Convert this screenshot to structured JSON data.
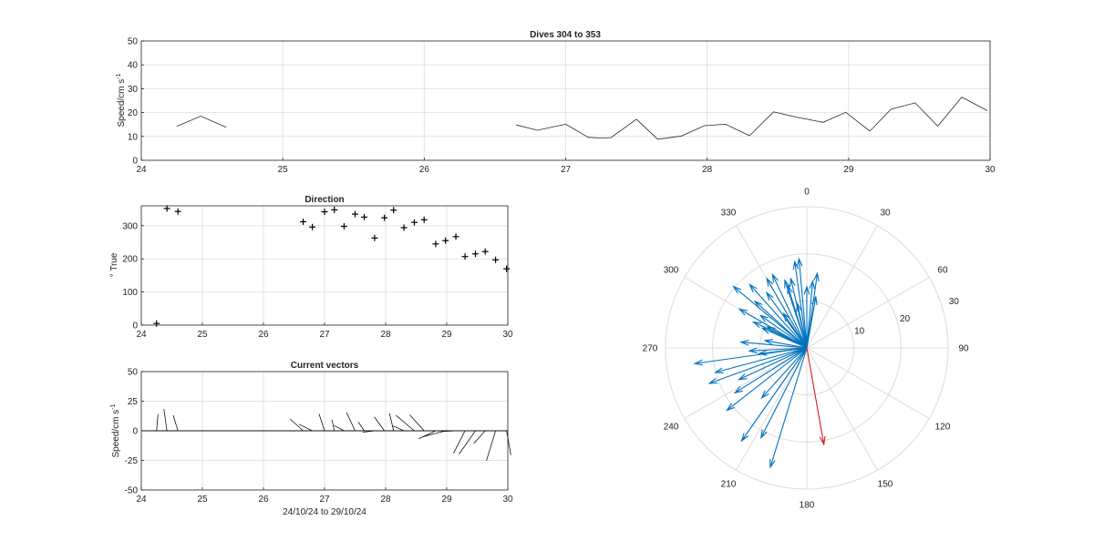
{
  "chart_data": [
    {
      "type": "line",
      "title": "Dives 304 to 353",
      "ylabel": "Speed/cm s",
      "ylabel_superscript": "-1",
      "xlim": [
        24,
        30
      ],
      "ylim": [
        0,
        50
      ],
      "xticks": [
        24,
        25,
        26,
        27,
        28,
        29,
        30
      ],
      "yticks": [
        0,
        10,
        20,
        30,
        40,
        50
      ],
      "grid": true,
      "segments": [
        [
          [
            24.25,
            14.2
          ],
          [
            24.42,
            18.5
          ],
          [
            24.6,
            13.8
          ]
        ],
        [
          [
            26.65,
            14.8
          ],
          [
            26.8,
            12.6
          ],
          [
            27.0,
            15.1
          ],
          [
            27.16,
            9.6
          ],
          [
            27.25,
            9.3
          ],
          [
            27.32,
            9.5
          ],
          [
            27.5,
            17.2
          ],
          [
            27.65,
            8.8
          ],
          [
            27.82,
            10.2
          ],
          [
            27.98,
            14.5
          ],
          [
            28.13,
            15.1
          ],
          [
            28.3,
            10.3
          ],
          [
            28.47,
            20.3
          ],
          [
            28.63,
            18.1
          ],
          [
            28.82,
            15.9
          ],
          [
            28.98,
            20.1
          ],
          [
            29.15,
            12.2
          ],
          [
            29.3,
            21.4
          ],
          [
            29.47,
            24.1
          ],
          [
            29.63,
            14.3
          ],
          [
            29.8,
            26.5
          ],
          [
            29.98,
            20.8
          ]
        ]
      ]
    },
    {
      "type": "scatter",
      "title": "Direction",
      "ylabel": "° True",
      "xlim": [
        24,
        30
      ],
      "ylim": [
        0,
        360
      ],
      "xticks": [
        24,
        25,
        26,
        27,
        28,
        29,
        30
      ],
      "yticks": [
        0,
        100,
        200,
        300
      ],
      "grid": true,
      "marker": "+",
      "points": [
        [
          24.25,
          5
        ],
        [
          24.42,
          352
        ],
        [
          24.6,
          343
        ],
        [
          26.65,
          312
        ],
        [
          26.8,
          296
        ],
        [
          27.0,
          342
        ],
        [
          27.16,
          348
        ],
        [
          27.32,
          298
        ],
        [
          27.5,
          335
        ],
        [
          27.65,
          326
        ],
        [
          27.82,
          263
        ],
        [
          27.98,
          324
        ],
        [
          28.13,
          347
        ],
        [
          28.3,
          294
        ],
        [
          28.47,
          310
        ],
        [
          28.63,
          318
        ],
        [
          28.82,
          245
        ],
        [
          28.98,
          255
        ],
        [
          29.15,
          267
        ],
        [
          29.3,
          207
        ],
        [
          29.47,
          215
        ],
        [
          29.63,
          222
        ],
        [
          29.8,
          197
        ],
        [
          29.98,
          170
        ]
      ]
    },
    {
      "type": "vector",
      "title": "Current vectors",
      "ylabel": "Speed/cm s",
      "ylabel_superscript": "-1",
      "xlabel": "24/10/24 to 29/10/24",
      "xlim": [
        24,
        30
      ],
      "ylim": [
        -50,
        50
      ],
      "xticks": [
        24,
        25,
        26,
        27,
        28,
        29,
        30
      ],
      "yticks": [
        -50,
        -25,
        0,
        25,
        50
      ],
      "grid": true,
      "vectors": [
        [
          24.25,
          14.2,
          5
        ],
        [
          24.42,
          18.5,
          352
        ],
        [
          24.6,
          13.8,
          343
        ],
        [
          26.65,
          14.8,
          312
        ],
        [
          26.8,
          12.6,
          296
        ],
        [
          27.0,
          15.1,
          342
        ],
        [
          27.16,
          9.6,
          348
        ],
        [
          27.32,
          9.5,
          298
        ],
        [
          27.5,
          17.2,
          335
        ],
        [
          27.65,
          8.8,
          326
        ],
        [
          27.82,
          10.2,
          263
        ],
        [
          27.98,
          14.5,
          324
        ],
        [
          28.13,
          15.1,
          347
        ],
        [
          28.3,
          10.3,
          294
        ],
        [
          28.47,
          20.3,
          310
        ],
        [
          28.63,
          18.1,
          318
        ],
        [
          28.82,
          15.9,
          245
        ],
        [
          28.98,
          20.1,
          255
        ],
        [
          29.15,
          12.2,
          267
        ],
        [
          29.3,
          21.4,
          207
        ],
        [
          29.47,
          24.1,
          215
        ],
        [
          29.63,
          14.3,
          222
        ],
        [
          29.8,
          26.5,
          197
        ],
        [
          29.98,
          20.8,
          170
        ]
      ]
    },
    {
      "type": "polar-compass",
      "rmax": 30,
      "r_ticks": [
        10,
        20,
        30
      ],
      "angle_ticks": [
        0,
        30,
        60,
        90,
        120,
        150,
        180,
        210,
        240,
        270,
        300,
        330
      ],
      "blue_color": "#0072bd",
      "red_color": "#d7191c",
      "blue_vectors": [
        [
          14.2,
          5
        ],
        [
          18.5,
          352
        ],
        [
          13.8,
          343
        ],
        [
          14.8,
          312
        ],
        [
          12.6,
          296
        ],
        [
          15.1,
          342
        ],
        [
          9.6,
          348
        ],
        [
          9.5,
          298
        ],
        [
          17.2,
          335
        ],
        [
          8.8,
          326
        ],
        [
          10.2,
          263
        ],
        [
          14.5,
          324
        ],
        [
          15.1,
          347
        ],
        [
          10.3,
          294
        ],
        [
          20.3,
          310
        ],
        [
          18.1,
          318
        ],
        [
          15.9,
          245
        ],
        [
          20.1,
          255
        ],
        [
          12.2,
          267
        ],
        [
          21.4,
          207
        ],
        [
          24.1,
          215
        ],
        [
          14.3,
          222
        ],
        [
          26.5,
          197
        ],
        [
          13.0,
          0
        ],
        [
          16.0,
          8
        ],
        [
          19.0,
          355
        ],
        [
          11.0,
          10
        ],
        [
          17.0,
          330
        ],
        [
          22.0,
          250
        ],
        [
          24.0,
          262
        ],
        [
          18.0,
          238
        ],
        [
          21.5,
          232
        ],
        [
          12.0,
          305
        ],
        [
          16.5,
          300
        ],
        [
          9.0,
          280
        ],
        [
          14.0,
          275
        ]
      ],
      "red_vectors": [
        [
          20.8,
          170
        ]
      ]
    }
  ]
}
